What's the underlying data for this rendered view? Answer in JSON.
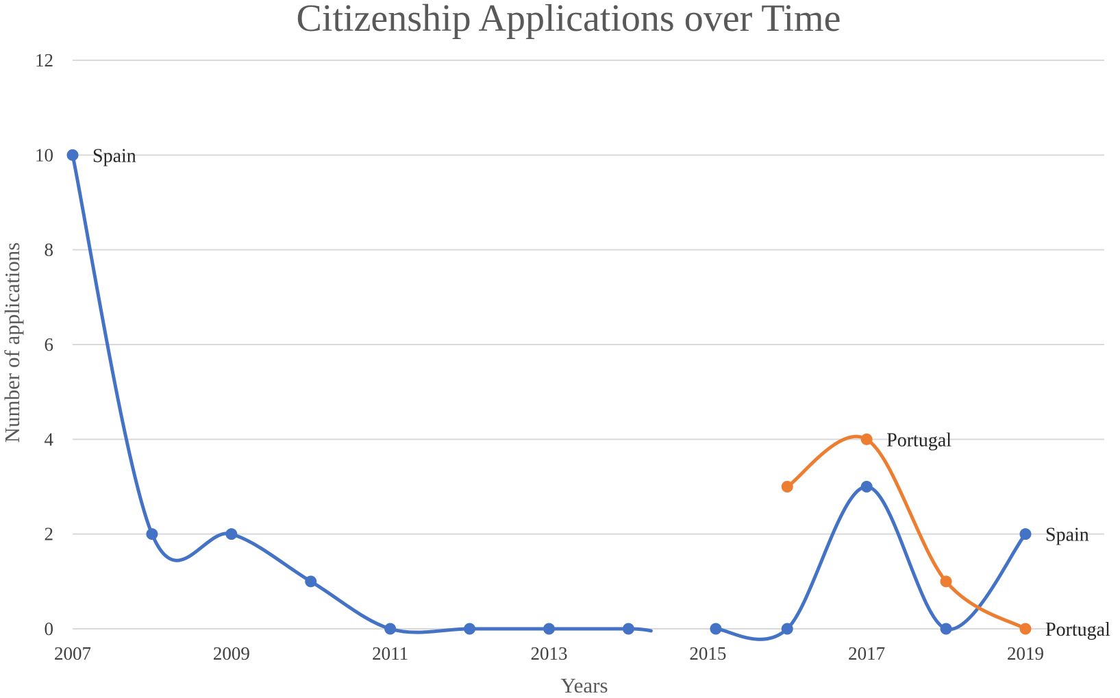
{
  "chart_data": {
    "type": "line",
    "title": "Citizenship Applications over Time",
    "xlabel": "Years",
    "ylabel": "Number of applications",
    "x": [
      2007,
      2008,
      2009,
      2010,
      2011,
      2012,
      2013,
      2014,
      2015,
      2016,
      2017,
      2018,
      2019
    ],
    "x_tick_labels": [
      "2007",
      "2009",
      "2011",
      "2013",
      "2015",
      "2017",
      "2019"
    ],
    "y_tick_labels": [
      "0",
      "2",
      "4",
      "6",
      "8",
      "10",
      "12"
    ],
    "xlim": [
      2007,
      2019
    ],
    "ylim": [
      0,
      12
    ],
    "grid": true,
    "smooth": true,
    "series": [
      {
        "name": "Spain",
        "color": "#4472c4",
        "values": [
          10,
          2,
          2,
          1,
          0,
          0,
          0,
          0,
          null,
          0,
          3,
          0,
          2
        ],
        "point_x": [
          2007,
          2008,
          2009,
          2010,
          2011,
          2012,
          2013,
          2014,
          2015.1,
          2016,
          2017,
          2018,
          2019
        ]
      },
      {
        "name": "Portugal",
        "color": "#ed7d31",
        "values": [
          null,
          null,
          null,
          null,
          null,
          null,
          null,
          null,
          null,
          3,
          4,
          1,
          0
        ],
        "point_x": [
          2007,
          2008,
          2009,
          2010,
          2011,
          2012,
          2013,
          2014,
          2015,
          2016,
          2017,
          2018,
          2019
        ]
      }
    ],
    "data_labels": [
      {
        "series": "Spain",
        "text": "Spain",
        "x": 2007,
        "y": 10
      },
      {
        "series": "Portugal",
        "text": "Portugal",
        "x": 2017,
        "y": 4
      },
      {
        "series": "Spain",
        "text": "Spain",
        "x": 2019,
        "y": 2
      },
      {
        "series": "Portugal",
        "text": "Portugal",
        "x": 2019,
        "y": 0
      }
    ]
  }
}
